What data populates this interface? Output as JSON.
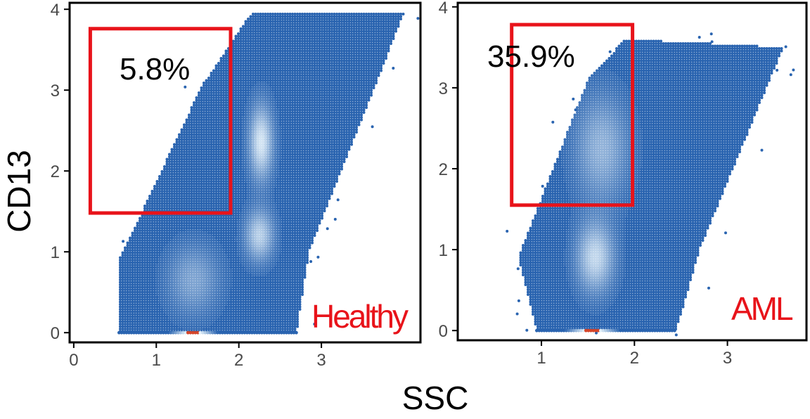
{
  "chart_data": [
    {
      "type": "scatter",
      "panel": "left",
      "condition_label": "Healthy",
      "gate_percent": "5.8%",
      "xlabel": "SSC",
      "ylabel": "CD13",
      "xlim": [
        -0.05,
        4.2
      ],
      "ylim": [
        -0.12,
        4.08
      ],
      "x_ticks": [
        "0",
        "1",
        "2",
        "3"
      ],
      "y_ticks": [
        "0",
        "1",
        "2",
        "3",
        "4"
      ],
      "gate": {
        "x": [
          0.2,
          1.9
        ],
        "y": [
          1.48,
          3.76
        ]
      },
      "density": {
        "shape": [
          [
            0.55,
            0.0
          ],
          [
            2.7,
            0.0
          ],
          [
            2.85,
            1.0
          ],
          [
            4.0,
            3.95
          ],
          [
            2.15,
            3.95
          ],
          [
            1.55,
            3.05
          ],
          [
            0.55,
            0.9
          ]
        ],
        "hotspots": [
          {
            "x": 2.27,
            "y": 2.35,
            "spread_x": 0.1,
            "spread_y": 0.32,
            "intensity": 0.9
          },
          {
            "x": 2.25,
            "y": 1.2,
            "spread_x": 0.12,
            "spread_y": 0.22,
            "intensity": 0.75
          },
          {
            "x": 1.45,
            "y": 0.65,
            "spread_x": 0.22,
            "spread_y": 0.3,
            "intensity": 0.45
          }
        ],
        "baseline_hotspot": {
          "x": 1.45,
          "y": 0.0
        }
      }
    },
    {
      "type": "scatter",
      "panel": "right",
      "condition_label": "AML",
      "gate_percent": "35.9%",
      "xlabel": "SSC",
      "ylabel": "CD13",
      "xlim": [
        0.1,
        3.85
      ],
      "ylim": [
        -0.12,
        4.05
      ],
      "x_ticks": [
        "1",
        "2",
        "3"
      ],
      "y_ticks": [
        "0",
        "1",
        "2",
        "3",
        "4"
      ],
      "gate": {
        "x": [
          0.68,
          1.98
        ],
        "y": [
          1.55,
          3.78
        ]
      },
      "density": {
        "shape": [
          [
            0.95,
            0.0
          ],
          [
            2.45,
            0.0
          ],
          [
            2.7,
            1.0
          ],
          [
            3.6,
            3.5
          ],
          [
            1.9,
            3.6
          ],
          [
            1.5,
            3.1
          ],
          [
            0.75,
            0.9
          ]
        ],
        "hotspots": [
          {
            "x": 1.58,
            "y": 0.9,
            "spread_x": 0.14,
            "spread_y": 0.3,
            "intensity": 0.8
          },
          {
            "x": 1.65,
            "y": 2.25,
            "spread_x": 0.2,
            "spread_y": 0.45,
            "intensity": 0.55
          }
        ],
        "baseline_hotspot": {
          "x": 1.55,
          "y": 0.0
        }
      }
    }
  ],
  "colors": {
    "point": "#2a64b0",
    "density_high": "#e8f4fb",
    "gate": "#e8131a",
    "condition_label": "#e8131a",
    "baseline_hot": "#d4452a"
  },
  "shared_axis_titles": {
    "x": "SSC",
    "y": "CD13"
  }
}
